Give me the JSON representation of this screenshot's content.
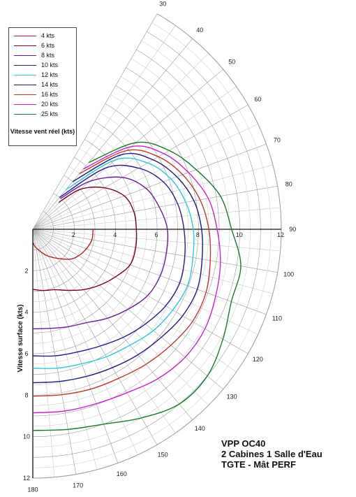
{
  "chart_data": {
    "type": "line",
    "subtype": "polar",
    "radial_axis": {
      "label": "Vitesse surface (kts)",
      "ticks": [
        2,
        4,
        6,
        8,
        10,
        12
      ],
      "range": [
        0,
        12
      ]
    },
    "angle_axis": {
      "unit": "degrees",
      "ticks": [
        30,
        40,
        50,
        60,
        70,
        80,
        90,
        100,
        110,
        120,
        130,
        140,
        150,
        160,
        170,
        180
      ],
      "range": [
        30,
        180
      ]
    },
    "legend": {
      "title": "Vitesse vent réel (kts)",
      "position": "top-left"
    },
    "series": [
      {
        "name": "4 kts",
        "color": "#b22222",
        "points": [
          [
            90,
            2.91
          ],
          [
            100,
            2.9
          ],
          [
            110,
            2.75
          ],
          [
            120,
            2.55
          ],
          [
            130,
            2.25
          ],
          [
            150,
            1.5
          ],
          [
            170,
            0.9
          ],
          [
            180,
            0.6
          ]
        ]
      },
      {
        "name": "6 kts",
        "color": "#800020",
        "points": [
          [
            44,
            1.8
          ],
          [
            50,
            3.0
          ],
          [
            60,
            4.0
          ],
          [
            70,
            4.7
          ],
          [
            80,
            4.95
          ],
          [
            90,
            5.0
          ],
          [
            100,
            5.05
          ],
          [
            110,
            5.0
          ],
          [
            120,
            4.6
          ],
          [
            130,
            4.2
          ],
          [
            140,
            3.8
          ],
          [
            150,
            3.4
          ],
          [
            160,
            3.1
          ],
          [
            170,
            3.0
          ],
          [
            180,
            2.9
          ]
        ]
      },
      {
        "name": "8 kts",
        "color": "#6a1b9a",
        "points": [
          [
            42,
            2.0
          ],
          [
            50,
            3.6
          ],
          [
            60,
            5.0
          ],
          [
            70,
            5.8
          ],
          [
            80,
            6.2
          ],
          [
            90,
            6.5
          ],
          [
            100,
            6.55
          ],
          [
            110,
            6.55
          ],
          [
            120,
            6.4
          ],
          [
            130,
            6.0
          ],
          [
            140,
            5.6
          ],
          [
            150,
            5.2
          ],
          [
            160,
            5.0
          ],
          [
            170,
            4.85
          ],
          [
            180,
            4.8
          ]
        ]
      },
      {
        "name": "10 kts",
        "color": "#2a1a8c",
        "points": [
          [
            40,
            2.0
          ],
          [
            50,
            4.6
          ],
          [
            60,
            5.9
          ],
          [
            70,
            6.7
          ],
          [
            80,
            7.1
          ],
          [
            90,
            7.3
          ],
          [
            100,
            7.45
          ],
          [
            110,
            7.55
          ],
          [
            120,
            7.4
          ],
          [
            130,
            7.1
          ],
          [
            140,
            6.8
          ],
          [
            150,
            6.5
          ],
          [
            160,
            6.3
          ],
          [
            170,
            6.2
          ],
          [
            180,
            6.1
          ]
        ]
      },
      {
        "name": "12 kts",
        "color": "#2ec8d8",
        "points": [
          [
            40,
            2.5
          ],
          [
            50,
            5.2
          ],
          [
            60,
            6.4
          ],
          [
            70,
            7.1
          ],
          [
            80,
            7.5
          ],
          [
            90,
            7.75
          ],
          [
            100,
            7.85
          ],
          [
            110,
            7.95
          ],
          [
            120,
            7.8
          ],
          [
            130,
            7.6
          ],
          [
            140,
            7.3
          ],
          [
            150,
            7.1
          ],
          [
            160,
            6.9
          ],
          [
            170,
            6.8
          ],
          [
            180,
            6.7
          ]
        ]
      },
      {
        "name": "14 kts",
        "color": "#1a1a7a",
        "points": [
          [
            40,
            3.0
          ],
          [
            50,
            5.6
          ],
          [
            60,
            6.7
          ],
          [
            70,
            7.4
          ],
          [
            80,
            7.9
          ],
          [
            90,
            8.15
          ],
          [
            100,
            8.3
          ],
          [
            110,
            8.45
          ],
          [
            120,
            8.35
          ],
          [
            130,
            8.1
          ],
          [
            140,
            7.9
          ],
          [
            150,
            7.7
          ],
          [
            160,
            7.55
          ],
          [
            170,
            7.45
          ],
          [
            180,
            7.4
          ]
        ]
      },
      {
        "name": "16 kts",
        "color": "#c0392b",
        "points": [
          [
            40,
            3.5
          ],
          [
            50,
            5.9
          ],
          [
            60,
            7.0
          ],
          [
            70,
            7.7
          ],
          [
            80,
            8.2
          ],
          [
            90,
            8.5
          ],
          [
            100,
            8.7
          ],
          [
            110,
            8.9
          ],
          [
            120,
            8.9
          ],
          [
            130,
            8.7
          ],
          [
            140,
            8.5
          ],
          [
            150,
            8.3
          ],
          [
            160,
            8.2
          ],
          [
            170,
            8.1
          ],
          [
            180,
            8.05
          ]
        ]
      },
      {
        "name": "20 kts",
        "color": "#cc22cc",
        "points": [
          [
            40,
            3.8
          ],
          [
            50,
            6.2
          ],
          [
            60,
            7.3
          ],
          [
            70,
            8.0
          ],
          [
            80,
            8.6
          ],
          [
            90,
            8.9
          ],
          [
            100,
            9.2
          ],
          [
            110,
            9.4
          ],
          [
            120,
            9.6
          ],
          [
            130,
            9.6
          ],
          [
            140,
            9.4
          ],
          [
            150,
            9.1
          ],
          [
            160,
            8.95
          ],
          [
            170,
            8.9
          ],
          [
            180,
            8.85
          ]
        ]
      },
      {
        "name": "25 kts",
        "color": "#1b7a2a",
        "points": [
          [
            40,
            4.2
          ],
          [
            50,
            6.5
          ],
          [
            60,
            7.6
          ],
          [
            70,
            8.4
          ],
          [
            80,
            9.2
          ],
          [
            90,
            9.6
          ],
          [
            100,
            10.2
          ],
          [
            110,
            10.2
          ],
          [
            120,
            10.6
          ],
          [
            130,
            11.0
          ],
          [
            140,
            11.0
          ],
          [
            150,
            10.5
          ],
          [
            160,
            10.0
          ],
          [
            170,
            9.8
          ],
          [
            180,
            9.7
          ]
        ]
      }
    ]
  },
  "caption": {
    "line1": "VPP OC40",
    "line2": "2 Cabines 1 Salle d'Eau",
    "line3": "TGTE - Mât PERF"
  }
}
